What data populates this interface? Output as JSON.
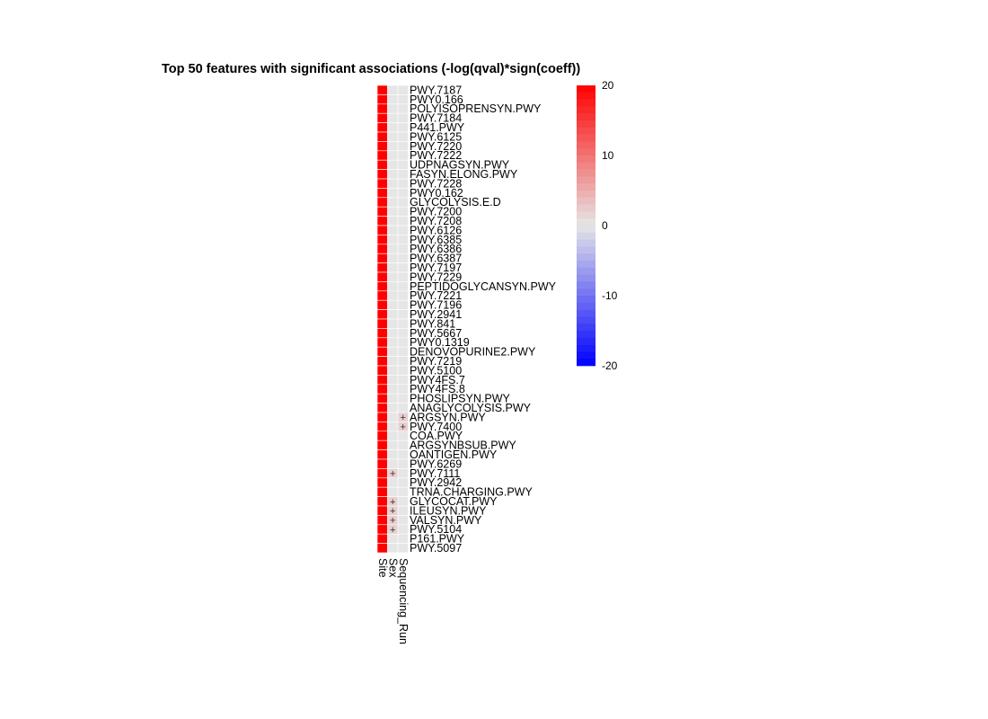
{
  "chart_data": {
    "type": "heatmap",
    "title": "Top 50 features with significant associations (-log(qval)*sign(coeff))",
    "columns": [
      "Site",
      "Sex",
      "Sequencing_Run"
    ],
    "rows": [
      "PWY.7187",
      "PWY0.166",
      "POLYISOPRENSYN.PWY",
      "PWY.7184",
      "P441.PWY",
      "PWY.6125",
      "PWY.7220",
      "PWY.7222",
      "UDPNAGSYN.PWY",
      "FASYN.ELONG.PWY",
      "PWY.7228",
      "PWY0.162",
      "GLYCOLYSIS.E.D",
      "PWY.7200",
      "PWY.7208",
      "PWY.6126",
      "PWY.6385",
      "PWY.6386",
      "PWY.6387",
      "PWY.7197",
      "PWY.7229",
      "PEPTIDOGLYCANSYN.PWY",
      "PWY.7221",
      "PWY.7196",
      "PWY.2941",
      "PWY.841",
      "PWY.5667",
      "PWY0.1319",
      "DENOVOPURINE2.PWY",
      "PWY.7219",
      "PWY.5100",
      "PWY4FS.7",
      "PWY4FS.8",
      "PHOSLIPSYN.PWY",
      "ANAGLYCOLYSIS.PWY",
      "ARGSYN.PWY",
      "PWY.7400",
      "COA.PWY",
      "ARGSYNBSUB.PWY",
      "OANTIGEN.PWY",
      "PWY.6269",
      "PWY.7111",
      "PWY.2942",
      "TRNA.CHARGING.PWY",
      "GLYCOCAT.PWY",
      "ILEUSYN.PWY",
      "VALSYN.PWY",
      "PWY.5104",
      "P161.PWY",
      "PWY.5097"
    ],
    "values": [
      [
        20,
        0,
        0
      ],
      [
        20,
        0,
        0
      ],
      [
        20,
        0,
        0
      ],
      [
        20,
        0,
        0
      ],
      [
        20,
        0,
        0
      ],
      [
        20,
        0,
        0
      ],
      [
        20,
        0,
        0
      ],
      [
        20,
        0,
        0
      ],
      [
        20,
        0,
        0
      ],
      [
        20,
        0,
        0
      ],
      [
        20,
        0,
        0
      ],
      [
        20,
        0,
        0
      ],
      [
        20,
        0,
        0
      ],
      [
        20,
        0,
        0
      ],
      [
        20,
        0,
        0
      ],
      [
        20,
        0,
        0
      ],
      [
        20,
        0,
        0
      ],
      [
        20,
        0,
        0
      ],
      [
        20,
        0,
        0
      ],
      [
        20,
        0,
        0
      ],
      [
        20,
        0,
        0
      ],
      [
        20,
        0,
        0
      ],
      [
        20,
        0,
        0
      ],
      [
        20,
        0,
        0
      ],
      [
        20,
        0,
        0
      ],
      [
        20,
        0,
        0
      ],
      [
        20,
        0,
        0
      ],
      [
        20,
        0,
        0
      ],
      [
        20,
        0,
        0
      ],
      [
        20,
        0,
        0
      ],
      [
        20,
        0,
        0
      ],
      [
        20,
        0,
        0
      ],
      [
        20,
        0,
        0
      ],
      [
        20,
        0,
        0
      ],
      [
        20,
        0,
        0
      ],
      [
        20,
        0,
        2
      ],
      [
        20,
        0,
        2
      ],
      [
        20,
        0,
        0
      ],
      [
        20,
        0,
        0
      ],
      [
        20,
        0,
        0
      ],
      [
        20,
        0,
        0
      ],
      [
        20,
        2,
        0
      ],
      [
        20,
        0,
        0
      ],
      [
        20,
        0,
        0
      ],
      [
        20,
        2,
        0
      ],
      [
        20,
        2,
        0
      ],
      [
        20,
        2,
        0
      ],
      [
        20,
        2,
        0
      ],
      [
        20,
        0,
        0
      ],
      [
        20,
        0,
        0
      ]
    ],
    "marks": [
      [
        35,
        2,
        "+"
      ],
      [
        36,
        2,
        "+"
      ],
      [
        41,
        1,
        "+"
      ],
      [
        44,
        1,
        "+"
      ],
      [
        45,
        1,
        "+"
      ],
      [
        46,
        1,
        "+"
      ],
      [
        47,
        1,
        "+"
      ]
    ],
    "scale": {
      "min": -20,
      "max": 20,
      "ticks": [
        20,
        10,
        0,
        -10,
        -20
      ],
      "low_color": "#0000ff",
      "mid_color": "#e6e6e6",
      "high_color": "#ff0000"
    },
    "grid_color": "#ffffff"
  }
}
